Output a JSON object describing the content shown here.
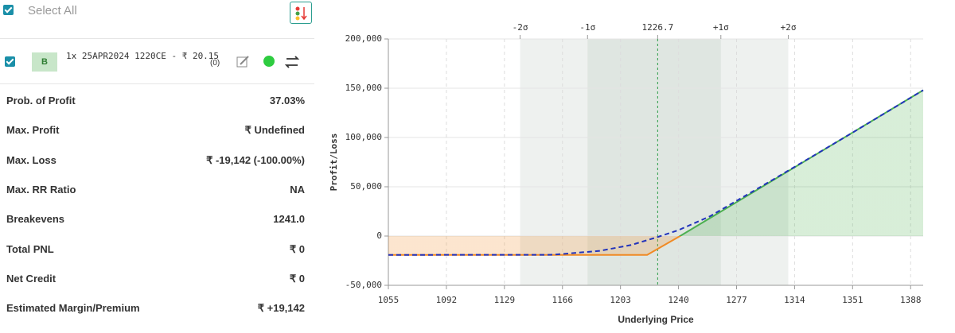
{
  "panel": {
    "select_all": "Select All",
    "leg": {
      "side": "B",
      "description": "1x 25APR2024 1220CE - ₹ 20.15",
      "count": "(0)"
    },
    "stats": [
      [
        "Prob. of Profit",
        "37.03%"
      ],
      [
        "Max. Profit",
        "₹ Undefined"
      ],
      [
        "Max. Loss",
        "₹ -19,142 (-100.00%)"
      ],
      [
        "Max. RR Ratio",
        "NA"
      ],
      [
        "Breakevens",
        "1241.0"
      ],
      [
        "Total PNL",
        "₹ 0"
      ],
      [
        "Net Credit",
        "₹ 0"
      ],
      [
        "Estimated Margin/Premium",
        "₹ +19,142"
      ]
    ]
  },
  "chart_data": {
    "type": "line",
    "x_label": "Underlying Price",
    "y_label": "Profit/Loss",
    "xlim": [
      1055,
      1396
    ],
    "xticks": [
      1055,
      1092,
      1129,
      1166,
      1203,
      1240,
      1277,
      1314,
      1351,
      1388
    ],
    "top_ticks": [
      {
        "value": 1139,
        "label": "-2σ"
      },
      {
        "value": 1182,
        "label": "-1σ"
      },
      1226.7,
      {
        "value": 1267,
        "label": "+1σ"
      },
      {
        "value": 1310,
        "label": "+2σ"
      }
    ],
    "ylim": [
      -50000,
      200000
    ],
    "yticks": [
      {
        "value": -50000,
        "label": "-50,000"
      },
      0,
      {
        "value": 50000,
        "label": "50,000"
      },
      {
        "value": 100000,
        "label": "100,000"
      },
      {
        "value": 150000,
        "label": "150,000"
      },
      {
        "value": 200000,
        "label": "200,000"
      }
    ],
    "grid": true,
    "series": [
      {
        "color": "#f08a24",
        "profit_color": "#4caf50",
        "fill": true,
        "x": [
          1055,
          1220,
          1241,
          1396
        ],
        "values": [
          -19142,
          -19142,
          0,
          148000
        ]
      },
      {
        "color": "#2233bb",
        "dashed": true,
        "x": [
          1055,
          1160,
          1190,
          1210,
          1226.7,
          1240,
          1260,
          1300,
          1350,
          1396
        ],
        "values": [
          -19142,
          -19000,
          -15000,
          -9000,
          -1000,
          6000,
          20000,
          57000,
          104000,
          148000
        ]
      }
    ]
  }
}
